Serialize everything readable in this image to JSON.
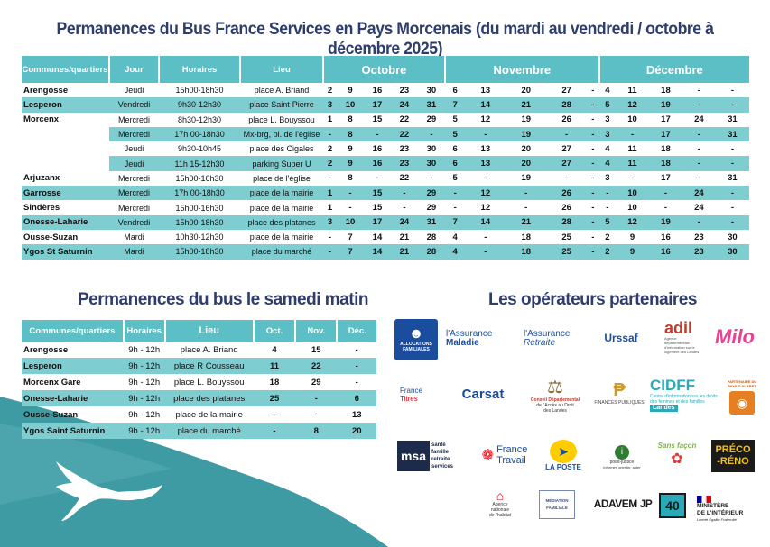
{
  "title": "Permanences du Bus France Services en Pays Morcenais (du mardi au vendredi / octobre à décembre 2025)",
  "main_table": {
    "headers": {
      "commune": "Communes/quartiers",
      "jour": "Jour",
      "horaires": "Horaires",
      "lieu": "Lieu",
      "oct": "Octobre",
      "nov": "Novembre",
      "dec": "Décembre"
    },
    "rows": [
      {
        "commune": "Arengosse",
        "jour": "Jeudi",
        "horaires": "15h00-18h30",
        "lieu": "place A. Briand",
        "oct": [
          "2",
          "9",
          "16",
          "23",
          "30"
        ],
        "nov": [
          "6",
          "13",
          "20",
          "27",
          "-"
        ],
        "dec": [
          "4",
          "11",
          "18",
          "-",
          "-"
        ],
        "style": "white"
      },
      {
        "commune": "Lesperon",
        "jour": "Vendredi",
        "horaires": "9h30-12h30",
        "lieu": "place Saint-Pierre",
        "oct": [
          "3",
          "10",
          "17",
          "24",
          "31"
        ],
        "nov": [
          "7",
          "14",
          "21",
          "28",
          "-"
        ],
        "dec": [
          "5",
          "12",
          "19",
          "-",
          "-"
        ],
        "style": "teal"
      },
      {
        "commune": "Morcenx",
        "jour": "Mercredi",
        "horaires": "8h30-12h30",
        "lieu": "place L. Bouyssou",
        "oct": [
          "1",
          "8",
          "15",
          "22",
          "29"
        ],
        "nov": [
          "5",
          "12",
          "19",
          "26",
          "-"
        ],
        "dec": [
          "3",
          "10",
          "17",
          "24",
          "31"
        ],
        "style": "white"
      },
      {
        "commune": "",
        "jour": "Mercredi",
        "horaires": "17h 00-18h30",
        "lieu": "Mx-brg, pl. de l'église",
        "oct": [
          "-",
          "8",
          "-",
          "22",
          "-"
        ],
        "nov": [
          "5",
          "-",
          "19",
          "-",
          "-"
        ],
        "dec": [
          "3",
          "-",
          "17",
          "-",
          "31"
        ],
        "style": "teal"
      },
      {
        "commune": "",
        "jour": "Jeudi",
        "horaires": "9h30-10h45",
        "lieu": "place des Cigales",
        "oct": [
          "2",
          "9",
          "16",
          "23",
          "30"
        ],
        "nov": [
          "6",
          "13",
          "20",
          "27",
          "-"
        ],
        "dec": [
          "4",
          "11",
          "18",
          "-",
          "-"
        ],
        "style": "white"
      },
      {
        "commune": "",
        "jour": "Jeudi",
        "horaires": "11h 15-12h30",
        "lieu": "parking Super U",
        "oct": [
          "2",
          "9",
          "16",
          "23",
          "30"
        ],
        "nov": [
          "6",
          "13",
          "20",
          "27",
          "-"
        ],
        "dec": [
          "4",
          "11",
          "18",
          "-",
          "-"
        ],
        "style": "teal"
      },
      {
        "commune": "Arjuzanx",
        "jour": "Mercredi",
        "horaires": "15h00-16h30",
        "lieu": "place de l'église",
        "oct": [
          "-",
          "8",
          "-",
          "22",
          "-"
        ],
        "nov": [
          "5",
          "-",
          "19",
          "-",
          "-"
        ],
        "dec": [
          "3",
          "-",
          "17",
          "-",
          "31"
        ],
        "style": "white"
      },
      {
        "commune": "Garrosse",
        "jour": "Mercredi",
        "horaires": "17h 00-18h30",
        "lieu": "place de la mairie",
        "oct": [
          "1",
          "-",
          "15",
          "-",
          "29"
        ],
        "nov": [
          "-",
          "12",
          "-",
          "26",
          "-"
        ],
        "dec": [
          "-",
          "10",
          "-",
          "24",
          "-"
        ],
        "style": "teal"
      },
      {
        "commune": "Sindères",
        "jour": "Mercredi",
        "horaires": "15h00-16h30",
        "lieu": "place de la mairie",
        "oct": [
          "1",
          "-",
          "15",
          "-",
          "29"
        ],
        "nov": [
          "-",
          "12",
          "-",
          "26",
          "-"
        ],
        "dec": [
          "-",
          "10",
          "-",
          "24",
          "-"
        ],
        "style": "white"
      },
      {
        "commune": "Onesse-Laharie",
        "jour": "Vendredi",
        "horaires": "15h00-18h30",
        "lieu": "place des platanes",
        "oct": [
          "3",
          "10",
          "17",
          "24",
          "31"
        ],
        "nov": [
          "7",
          "14",
          "21",
          "28",
          "-"
        ],
        "dec": [
          "5",
          "12",
          "19",
          "-",
          "-"
        ],
        "style": "teal"
      },
      {
        "commune": "Ousse-Suzan",
        "jour": "Mardi",
        "horaires": "10h30-12h30",
        "lieu": "place de la mairie",
        "oct": [
          "-",
          "7",
          "14",
          "21",
          "28"
        ],
        "nov": [
          "4",
          "-",
          "18",
          "25",
          "-"
        ],
        "dec": [
          "2",
          "9",
          "16",
          "23",
          "30"
        ],
        "style": "white"
      },
      {
        "commune": "Ygos St Saturnin",
        "jour": "Mardi",
        "horaires": "15h00-18h30",
        "lieu": "place du marché",
        "oct": [
          "-",
          "7",
          "14",
          "21",
          "28"
        ],
        "nov": [
          "4",
          "-",
          "18",
          "25",
          "-"
        ],
        "dec": [
          "2",
          "9",
          "16",
          "23",
          "30"
        ],
        "style": "teal"
      }
    ]
  },
  "saturday": {
    "title": "Permanences du bus le samedi matin",
    "headers": {
      "commune": "Communes/quartiers",
      "horaires": "Horaires",
      "lieu": "Lieu",
      "oct": "Oct.",
      "nov": "Nov.",
      "dec": "Déc."
    },
    "rows": [
      {
        "commune": "Arengosse",
        "horaires": "9h - 12h",
        "lieu": "place A. Briand",
        "oct": "4",
        "nov": "15",
        "dec": "-",
        "style": "white"
      },
      {
        "commune": "Lesperon",
        "horaires": "9h - 12h",
        "lieu": "place R Cousseau",
        "oct": "11",
        "nov": "22",
        "dec": "-",
        "style": "teal"
      },
      {
        "commune": "Morcenx Gare",
        "horaires": "9h - 12h",
        "lieu": "place L. Bouyssou",
        "oct": "18",
        "nov": "29",
        "dec": "-",
        "style": "white"
      },
      {
        "commune": "Onesse-Laharie",
        "horaires": "9h - 12h",
        "lieu": "place des platanes",
        "oct": "25",
        "nov": "-",
        "dec": "6",
        "style": "teal"
      },
      {
        "commune": "Ousse-Suzan",
        "horaires": "9h - 12h",
        "lieu": "place de la mairie",
        "oct": "-",
        "nov": "-",
        "dec": "13",
        "style": "white"
      },
      {
        "commune": "Ygos Saint Saturnin",
        "horaires": "9h - 12h",
        "lieu": "place du marché",
        "oct": "-",
        "nov": "8",
        "dec": "20",
        "style": "teal"
      }
    ]
  },
  "partners": {
    "title": "Les opérateurs partenaires",
    "logos": {
      "caf": "ALLOCATIONS FAMILIALES",
      "ameli_1": "l'Assurance",
      "ameli_2": "Maladie",
      "retraite_1": "l'Assurance",
      "retraite_2": "Retraite",
      "urssaf": "Urssaf",
      "adil_1": "adil",
      "adil_2": "Agence départementale d'information sur le logement des Landes",
      "milo": "Milo",
      "france_titres_1": "France",
      "france_titres_2": "Titres",
      "carsat": "Carsat",
      "cdad_1": "Conseil Départemental",
      "cdad_2": "de l'Accès au Droit",
      "cdad_3": "des Landes",
      "finances": "FINANCES PUBLIQUES",
      "cidff_1": "CIDFF",
      "cidff_2": "Centre d'information sur les droits des femmes et des familles",
      "cidff_3": "Landes",
      "albret": "PARTENAIRE DU PAYS D'ALBRET",
      "msa_1": "msa",
      "msa_2": "santé",
      "msa_3": "famille",
      "msa_4": "retraite",
      "msa_5": "services",
      "france_travail_1": "France",
      "france_travail_2": "Travail",
      "laposte": "LA POSTE",
      "point_justice_1": "point-justice",
      "point_justice_2": "informer, orienter, aider",
      "sans_facon": "Sans façon",
      "preco_1": "PRÉCO",
      "preco_2": "-RÉNO",
      "anah_1": "Agence",
      "anah_2": "nationale",
      "anah_3": "de l'habitat",
      "mediation_1": "MÉDIATION",
      "mediation_2": "FAMILIALE",
      "adavem": "ADAVEM JP",
      "forty": "40",
      "ministere_1": "MINISTÈRE",
      "ministere_2": "DE L'INTÉRIEUR",
      "ministere_3": "Liberté Égalité Fraternité"
    }
  },
  "colors": {
    "teal_header": "#5bbfc5",
    "teal_row": "#7ecdd1",
    "title": "#2e3d6b",
    "wave": "#3e9aa3"
  }
}
